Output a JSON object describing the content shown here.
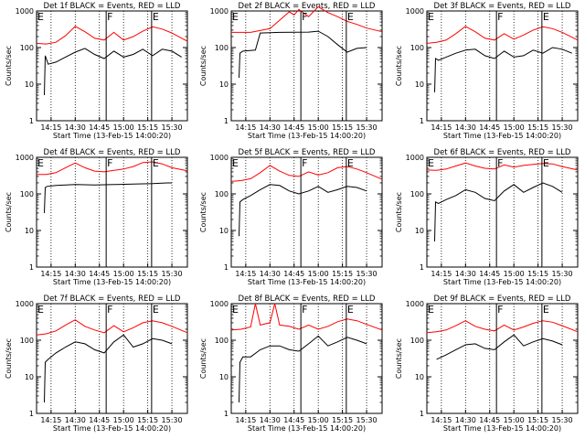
{
  "chart_data": [
    {
      "type": "line",
      "title": "Det 1f BLACK = Events, RED = LLD",
      "xlabel": "Start Time (13-Feb-15 14:00:20)",
      "ylabel": "Counts/sec",
      "y_scale": "log",
      "ylim": [
        1,
        1000
      ],
      "xlim": [
        14.1,
        15.66
      ],
      "x_tick_labels": [
        "14:15",
        "14:30",
        "14:45",
        "15:00",
        "15:15",
        "15:30"
      ],
      "y_tick_labels": [
        "1",
        "10",
        "100",
        "1000"
      ],
      "markers": [
        {
          "label": "E",
          "x": 14.1
        },
        {
          "label": "F",
          "x": 14.82
        },
        {
          "label": "E",
          "x": 15.29
        }
      ],
      "series": [
        {
          "name": "LLD",
          "color": "#ff0000",
          "x": [
            14.1,
            14.2,
            14.3,
            14.4,
            14.5,
            14.6,
            14.7,
            14.8,
            14.9,
            15.0,
            15.1,
            15.2,
            15.3,
            15.4,
            15.5,
            15.6,
            15.66
          ],
          "y": [
            130,
            125,
            140,
            210,
            380,
            270,
            180,
            160,
            260,
            160,
            200,
            280,
            370,
            320,
            250,
            180,
            150
          ]
        },
        {
          "name": "Events",
          "color": "#000000",
          "x": [
            14.18,
            14.19,
            14.22,
            14.3,
            14.4,
            14.5,
            14.6,
            14.7,
            14.8,
            14.9,
            15.0,
            15.1,
            15.2,
            15.3,
            15.4,
            15.5,
            15.6
          ],
          "y": [
            5,
            60,
            35,
            40,
            55,
            75,
            95,
            65,
            50,
            80,
            55,
            65,
            90,
            60,
            90,
            80,
            55
          ]
        }
      ]
    },
    {
      "type": "line",
      "title": "Det 2f BLACK = Events, RED = LLD",
      "xlabel": "Start Time (13-Feb-15 14:00:20)",
      "ylabel": "Counts/sec",
      "y_scale": "log",
      "ylim": [
        1,
        1000
      ],
      "xlim": [
        14.1,
        15.66
      ],
      "x_tick_labels": [
        "14:15",
        "14:30",
        "14:45",
        "15:00",
        "15:15",
        "15:30"
      ],
      "y_tick_labels": [
        "1",
        "10",
        "100",
        "1000"
      ],
      "markers": [
        {
          "label": "E",
          "x": 14.1
        },
        {
          "label": "F",
          "x": 14.82
        },
        {
          "label": "E",
          "x": 15.29
        }
      ],
      "series": [
        {
          "name": "LLD",
          "color": "#ff0000",
          "x": [
            14.1,
            14.3,
            14.5,
            14.6,
            14.7,
            14.75,
            14.8,
            14.9,
            15.0,
            15.1,
            15.2,
            15.3,
            15.4,
            15.5,
            15.66
          ],
          "y": [
            260,
            260,
            330,
            560,
            950,
            780,
            1100,
            700,
            1300,
            900,
            700,
            520,
            430,
            340,
            270
          ]
        },
        {
          "name": "Events",
          "color": "#000000",
          "x": [
            14.18,
            14.19,
            14.22,
            14.35,
            14.4,
            14.6,
            14.9,
            15.0,
            15.1,
            15.2,
            15.3,
            15.4,
            15.5
          ],
          "y": [
            15,
            70,
            80,
            85,
            250,
            260,
            265,
            280,
            200,
            120,
            75,
            95,
            100
          ]
        }
      ]
    },
    {
      "type": "line",
      "title": "Det 3f BLACK = Events, RED = LLD",
      "xlabel": "Start Time (13-Feb-15 14:00:20)",
      "ylabel": "Counts/sec",
      "y_scale": "log",
      "ylim": [
        1,
        1000
      ],
      "xlim": [
        14.1,
        15.66
      ],
      "x_tick_labels": [
        "14:15",
        "14:30",
        "14:45",
        "15:00",
        "15:15",
        "15:30"
      ],
      "y_tick_labels": [
        "1",
        "10",
        "100",
        "1000"
      ],
      "markers": [
        {
          "label": "E",
          "x": 14.1
        },
        {
          "label": "F",
          "x": 14.82
        },
        {
          "label": "E",
          "x": 15.29
        }
      ],
      "series": [
        {
          "name": "LLD",
          "color": "#ff0000",
          "x": [
            14.1,
            14.2,
            14.3,
            14.4,
            14.5,
            14.6,
            14.7,
            14.8,
            14.9,
            15.0,
            15.1,
            15.2,
            15.3,
            15.4,
            15.5,
            15.66
          ],
          "y": [
            130,
            140,
            160,
            240,
            380,
            270,
            180,
            160,
            240,
            170,
            220,
            300,
            370,
            330,
            260,
            160
          ]
        },
        {
          "name": "Events",
          "color": "#000000",
          "x": [
            14.18,
            14.19,
            14.22,
            14.3,
            14.4,
            14.5,
            14.6,
            14.7,
            14.8,
            14.9,
            15.0,
            15.1,
            15.2,
            15.3,
            15.4,
            15.5,
            15.6
          ],
          "y": [
            6,
            50,
            45,
            55,
            70,
            85,
            90,
            60,
            50,
            80,
            55,
            60,
            85,
            70,
            100,
            90,
            70
          ]
        }
      ]
    },
    {
      "type": "line",
      "title": "Det 4f BLACK = Events, RED = LLD",
      "xlabel": "Start Time (13-Feb-15 14:00:20)",
      "ylabel": "Counts/sec",
      "y_scale": "log",
      "ylim": [
        1,
        1000
      ],
      "xlim": [
        14.1,
        15.66
      ],
      "x_tick_labels": [
        "14:15",
        "14:30",
        "14:45",
        "15:00",
        "15:15",
        "15:30"
      ],
      "y_tick_labels": [
        "1",
        "10",
        "100",
        "1000"
      ],
      "markers": [
        {
          "label": "E",
          "x": 14.1
        },
        {
          "label": "F",
          "x": 14.82
        },
        {
          "label": "E",
          "x": 15.29
        }
      ],
      "series": [
        {
          "name": "LLD",
          "color": "#ff0000",
          "x": [
            14.1,
            14.2,
            14.3,
            14.4,
            14.5,
            14.6,
            14.7,
            14.8,
            14.9,
            15.0,
            15.1,
            15.2,
            15.3,
            15.4,
            15.5,
            15.66
          ],
          "y": [
            340,
            340,
            380,
            520,
            700,
            520,
            420,
            400,
            440,
            480,
            560,
            720,
            750,
            660,
            520,
            430
          ]
        },
        {
          "name": "Events",
          "color": "#000000",
          "x": [
            14.18,
            14.19,
            14.21,
            14.3,
            14.5,
            14.7,
            14.9,
            15.1,
            15.3,
            15.45,
            15.5
          ],
          "y": [
            30,
            150,
            160,
            170,
            180,
            175,
            180,
            185,
            190,
            200,
            200
          ]
        }
      ]
    },
    {
      "type": "line",
      "title": "Det 5f BLACK = Events, RED = LLD",
      "xlabel": "Start Time (13-Feb-15 14:00:20)",
      "ylabel": "Counts/sec",
      "y_scale": "log",
      "ylim": [
        1,
        1000
      ],
      "xlim": [
        14.1,
        15.66
      ],
      "x_tick_labels": [
        "14:15",
        "14:30",
        "14:45",
        "15:00",
        "15:15",
        "15:30"
      ],
      "y_tick_labels": [
        "1",
        "10",
        "100",
        "1000"
      ],
      "markers": [
        {
          "label": "E",
          "x": 14.1
        },
        {
          "label": "F",
          "x": 14.82
        },
        {
          "label": "E",
          "x": 15.29
        }
      ],
      "series": [
        {
          "name": "LLD",
          "color": "#ff0000",
          "x": [
            14.1,
            14.2,
            14.3,
            14.4,
            14.5,
            14.6,
            14.7,
            14.8,
            14.9,
            15.0,
            15.1,
            15.2,
            15.3,
            15.4,
            15.5,
            15.66
          ],
          "y": [
            220,
            230,
            260,
            380,
            600,
            420,
            320,
            300,
            400,
            330,
            380,
            520,
            560,
            480,
            380,
            250
          ]
        },
        {
          "name": "Events",
          "color": "#000000",
          "x": [
            14.18,
            14.19,
            14.22,
            14.3,
            14.4,
            14.5,
            14.6,
            14.7,
            14.8,
            14.9,
            15.0,
            15.1,
            15.2,
            15.3,
            15.4,
            15.5
          ],
          "y": [
            7,
            60,
            70,
            90,
            130,
            180,
            170,
            120,
            100,
            120,
            160,
            110,
            130,
            160,
            150,
            120
          ]
        }
      ]
    },
    {
      "type": "line",
      "title": "Det 6f BLACK = Events, RED = LLD",
      "xlabel": "Start Time (13-Feb-15 14:00:20)",
      "ylabel": "Counts/sec",
      "y_scale": "log",
      "ylim": [
        1,
        1000
      ],
      "xlim": [
        14.1,
        15.66
      ],
      "x_tick_labels": [
        "14:15",
        "14:30",
        "14:45",
        "15:00",
        "15:15",
        "15:30"
      ],
      "y_tick_labels": [
        "1",
        "10",
        "100",
        "1000"
      ],
      "markers": [
        {
          "label": "E",
          "x": 14.1
        },
        {
          "label": "F",
          "x": 14.82
        },
        {
          "label": "E",
          "x": 15.29
        }
      ],
      "series": [
        {
          "name": "LLD",
          "color": "#ff0000",
          "x": [
            14.1,
            14.2,
            14.3,
            14.4,
            14.5,
            14.6,
            14.7,
            14.8,
            14.9,
            15.0,
            15.1,
            15.2,
            15.3,
            15.4,
            15.5,
            15.66
          ],
          "y": [
            450,
            440,
            480,
            580,
            700,
            580,
            500,
            480,
            620,
            540,
            600,
            640,
            680,
            660,
            560,
            450
          ]
        },
        {
          "name": "Events",
          "color": "#000000",
          "x": [
            14.18,
            14.19,
            14.22,
            14.3,
            14.4,
            14.5,
            14.6,
            14.7,
            14.8,
            14.9,
            15.0,
            15.1,
            15.2,
            15.3,
            15.4,
            15.5
          ],
          "y": [
            5,
            60,
            55,
            70,
            90,
            130,
            110,
            75,
            65,
            120,
            180,
            110,
            150,
            200,
            160,
            110
          ]
        }
      ]
    },
    {
      "type": "line",
      "title": "Det 7f BLACK = Events, RED = LLD",
      "xlabel": "Start Time (13-Feb-15 14:00:20)",
      "ylabel": "Counts/sec",
      "y_scale": "log",
      "ylim": [
        1,
        1000
      ],
      "xlim": [
        14.1,
        15.66
      ],
      "x_tick_labels": [
        "14:15",
        "14:30",
        "14:45",
        "15:00",
        "15:15",
        "15:30"
      ],
      "y_tick_labels": [
        "1",
        "10",
        "100",
        "1000"
      ],
      "markers": [
        {
          "label": "E",
          "x": 14.1
        },
        {
          "label": "F",
          "x": 14.82
        },
        {
          "label": "E",
          "x": 15.29
        }
      ],
      "series": [
        {
          "name": "LLD",
          "color": "#ff0000",
          "x": [
            14.1,
            14.2,
            14.3,
            14.4,
            14.5,
            14.6,
            14.7,
            14.8,
            14.9,
            15.0,
            15.1,
            15.2,
            15.3,
            15.4,
            15.5,
            15.66
          ],
          "y": [
            140,
            150,
            180,
            260,
            360,
            240,
            190,
            160,
            250,
            170,
            220,
            300,
            340,
            300,
            240,
            160
          ]
        },
        {
          "name": "Events",
          "color": "#000000",
          "x": [
            14.18,
            14.19,
            14.22,
            14.3,
            14.4,
            14.5,
            14.6,
            14.7,
            14.8,
            14.9,
            15.0,
            15.1,
            15.2,
            15.3,
            15.4,
            15.5
          ],
          "y": [
            2,
            25,
            30,
            45,
            65,
            90,
            80,
            55,
            45,
            90,
            140,
            65,
            80,
            110,
            100,
            80
          ]
        }
      ]
    },
    {
      "type": "line",
      "title": "Det 8f BLACK = Events, RED = LLD",
      "xlabel": "Start Time (13-Feb-15 14:00:20)",
      "ylabel": "Counts/sec",
      "y_scale": "log",
      "ylim": [
        1,
        1000
      ],
      "xlim": [
        14.1,
        15.66
      ],
      "x_tick_labels": [
        "14:15",
        "14:30",
        "14:45",
        "15:00",
        "15:15",
        "15:30"
      ],
      "y_tick_labels": [
        "1",
        "10",
        "100",
        "1000"
      ],
      "markers": [
        {
          "label": "E",
          "x": 14.1
        },
        {
          "label": "F",
          "x": 14.82
        },
        {
          "label": "E",
          "x": 15.29
        }
      ],
      "series": [
        {
          "name": "LLD",
          "color": "#ff0000",
          "x": [
            14.1,
            14.2,
            14.3,
            14.35,
            14.4,
            14.5,
            14.55,
            14.6,
            14.7,
            14.8,
            14.9,
            15.0,
            15.1,
            15.2,
            15.3,
            15.4,
            15.5,
            15.66
          ],
          "y": [
            190,
            200,
            230,
            1000,
            260,
            300,
            1000,
            260,
            240,
            200,
            260,
            200,
            240,
            320,
            380,
            340,
            270,
            190
          ]
        },
        {
          "name": "Events",
          "color": "#000000",
          "x": [
            14.18,
            14.19,
            14.22,
            14.3,
            14.4,
            14.5,
            14.6,
            14.7,
            14.8,
            14.9,
            15.0,
            15.1,
            15.2,
            15.3,
            15.4,
            15.5
          ],
          "y": [
            2,
            25,
            35,
            35,
            55,
            70,
            70,
            55,
            50,
            80,
            130,
            70,
            90,
            120,
            100,
            80
          ]
        }
      ]
    },
    {
      "type": "line",
      "title": "Det 9f BLACK = Events, RED = LLD",
      "xlabel": "Start Time (13-Feb-15 14:00:20)",
      "ylabel": "Counts/sec",
      "y_scale": "log",
      "ylim": [
        1,
        1000
      ],
      "xlim": [
        14.1,
        15.66
      ],
      "x_tick_labels": [
        "14:15",
        "14:30",
        "14:45",
        "15:00",
        "15:15",
        "15:30"
      ],
      "y_tick_labels": [
        "1",
        "10",
        "100",
        "1000"
      ],
      "markers": [
        {
          "label": "E",
          "x": 14.1
        },
        {
          "label": "F",
          "x": 14.82
        },
        {
          "label": "E",
          "x": 15.29
        }
      ],
      "series": [
        {
          "name": "LLD",
          "color": "#ff0000",
          "x": [
            14.1,
            14.2,
            14.3,
            14.4,
            14.5,
            14.6,
            14.7,
            14.8,
            14.9,
            15.0,
            15.1,
            15.2,
            15.3,
            15.4,
            15.5,
            15.66
          ],
          "y": [
            160,
            170,
            190,
            250,
            340,
            240,
            200,
            180,
            260,
            190,
            230,
            290,
            340,
            310,
            250,
            170
          ]
        },
        {
          "name": "Events",
          "color": "#000000",
          "x": [
            14.2,
            14.3,
            14.4,
            14.5,
            14.6,
            14.7,
            14.8,
            14.9,
            15.0,
            15.1,
            15.2,
            15.3,
            15.4,
            15.5
          ],
          "y": [
            30,
            40,
            55,
            75,
            80,
            60,
            55,
            90,
            140,
            70,
            90,
            110,
            95,
            75
          ]
        }
      ]
    }
  ]
}
